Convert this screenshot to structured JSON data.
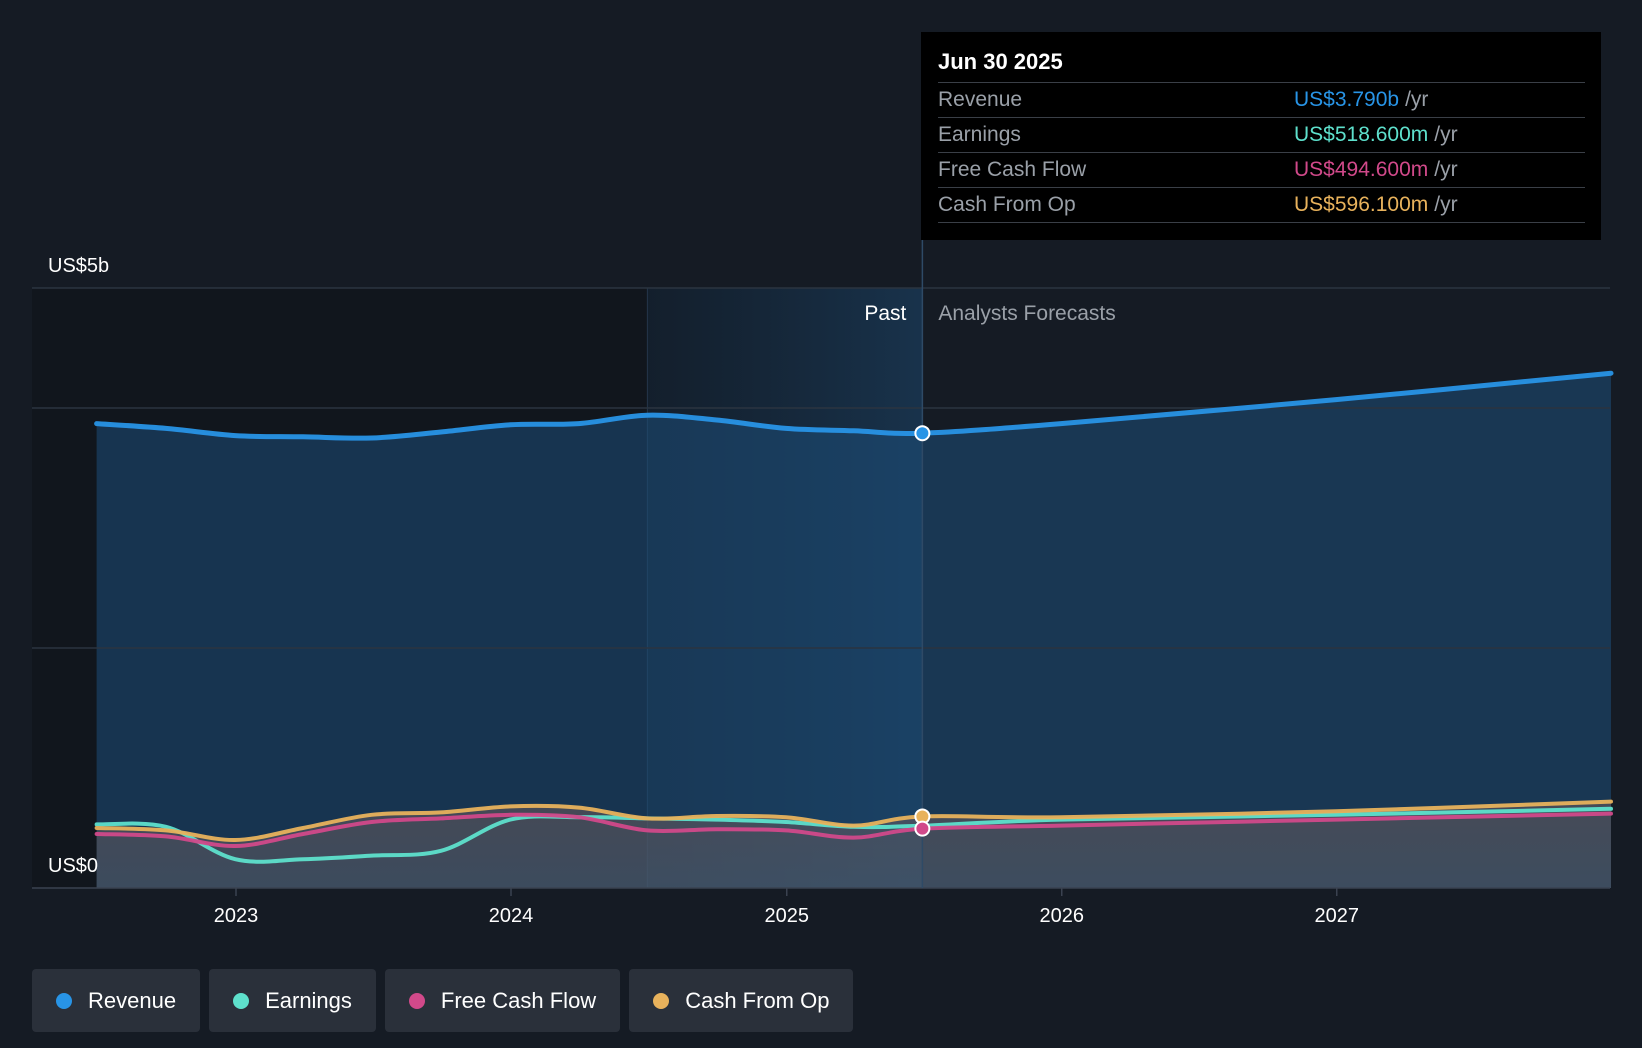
{
  "chart_data": {
    "type": "area",
    "y_top_label": "US$5b",
    "y_bottom_label": "US$0",
    "past_label": "Past",
    "forecast_label": "Analysts Forecasts",
    "ylim": [
      0,
      4.5
    ],
    "x_ticks": [
      "2023",
      "2024",
      "2025",
      "2026",
      "2027"
    ],
    "series": [
      {
        "name": "Revenue",
        "color": "#2894e6",
        "points": [
          [
            "2022-06-30",
            3.87
          ],
          [
            "2022-09-30",
            3.83
          ],
          [
            "2022-12-31",
            3.77
          ],
          [
            "2023-03-31",
            3.76
          ],
          [
            "2023-06-30",
            3.75
          ],
          [
            "2023-09-30",
            3.8
          ],
          [
            "2023-12-31",
            3.86
          ],
          [
            "2024-03-31",
            3.87
          ],
          [
            "2024-06-30",
            3.94
          ],
          [
            "2024-09-30",
            3.9
          ],
          [
            "2024-12-31",
            3.83
          ],
          [
            "2025-03-31",
            3.81
          ],
          [
            "2025-06-30",
            3.79
          ],
          [
            "2025-12-31",
            3.87
          ],
          [
            "2026-12-31",
            4.07
          ],
          [
            "2027-12-31",
            4.29
          ]
        ]
      },
      {
        "name": "Earnings",
        "color": "#5ee0cc",
        "points": [
          [
            "2022-06-30",
            0.53
          ],
          [
            "2022-09-30",
            0.51
          ],
          [
            "2022-12-31",
            0.24
          ],
          [
            "2023-03-31",
            0.24
          ],
          [
            "2023-06-30",
            0.27
          ],
          [
            "2023-09-30",
            0.31
          ],
          [
            "2023-12-31",
            0.57
          ],
          [
            "2024-03-31",
            0.59
          ],
          [
            "2024-06-30",
            0.58
          ],
          [
            "2024-09-30",
            0.57
          ],
          [
            "2024-12-31",
            0.55
          ],
          [
            "2025-03-31",
            0.51
          ],
          [
            "2025-06-30",
            0.5186
          ],
          [
            "2025-12-31",
            0.57
          ],
          [
            "2026-12-31",
            0.61
          ],
          [
            "2027-12-31",
            0.66
          ]
        ]
      },
      {
        "name": "Free Cash Flow",
        "color": "#d1498a",
        "points": [
          [
            "2022-06-30",
            0.45
          ],
          [
            "2022-09-30",
            0.43
          ],
          [
            "2022-12-31",
            0.35
          ],
          [
            "2023-03-31",
            0.45
          ],
          [
            "2023-06-30",
            0.55
          ],
          [
            "2023-09-30",
            0.58
          ],
          [
            "2023-12-31",
            0.61
          ],
          [
            "2024-03-31",
            0.59
          ],
          [
            "2024-06-30",
            0.48
          ],
          [
            "2024-09-30",
            0.49
          ],
          [
            "2024-12-31",
            0.48
          ],
          [
            "2025-03-31",
            0.42
          ],
          [
            "2025-06-30",
            0.4946
          ],
          [
            "2025-12-31",
            0.52
          ],
          [
            "2026-12-31",
            0.57
          ],
          [
            "2027-12-31",
            0.62
          ]
        ]
      },
      {
        "name": "Cash From Op",
        "color": "#e8b25c",
        "points": [
          [
            "2022-06-30",
            0.5
          ],
          [
            "2022-09-30",
            0.48
          ],
          [
            "2022-12-31",
            0.4
          ],
          [
            "2023-03-31",
            0.5
          ],
          [
            "2023-06-30",
            0.61
          ],
          [
            "2023-09-30",
            0.63
          ],
          [
            "2023-12-31",
            0.68
          ],
          [
            "2024-03-31",
            0.67
          ],
          [
            "2024-06-30",
            0.58
          ],
          [
            "2024-09-30",
            0.6
          ],
          [
            "2024-12-31",
            0.59
          ],
          [
            "2025-03-31",
            0.52
          ],
          [
            "2025-06-30",
            0.5961
          ],
          [
            "2025-12-31",
            0.59
          ],
          [
            "2026-12-31",
            0.64
          ],
          [
            "2027-12-31",
            0.72
          ]
        ]
      }
    ],
    "tooltip": {
      "date": "Jun 30 2025",
      "rows": [
        {
          "label": "Revenue",
          "value": "US$3.790b",
          "unit": "/yr",
          "color": "#2894e6"
        },
        {
          "label": "Earnings",
          "value": "US$518.600m",
          "unit": "/yr",
          "color": "#5ee0cc"
        },
        {
          "label": "Free Cash Flow",
          "value": "US$494.600m",
          "unit": "/yr",
          "color": "#d1498a"
        },
        {
          "label": "Cash From Op",
          "value": "US$596.100m",
          "unit": "/yr",
          "color": "#e8b25c"
        }
      ]
    }
  },
  "legend": [
    {
      "label": "Revenue",
      "color": "#2894e6"
    },
    {
      "label": "Earnings",
      "color": "#5ee0cc"
    },
    {
      "label": "Free Cash Flow",
      "color": "#d1498a"
    },
    {
      "label": "Cash From Op",
      "color": "#e8b25c"
    }
  ]
}
